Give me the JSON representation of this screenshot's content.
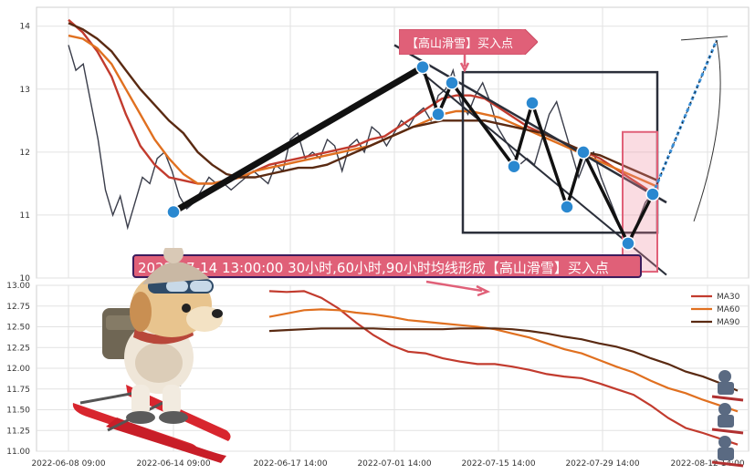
{
  "banner_text": "2022-07-14 13:00:00 30小时,60小时,90小时均线形成【高山滑雪】买入点",
  "tag_text": "【高山滑雪】买入点",
  "colors": {
    "price": "#3a3d4a",
    "ma30": "#c23b2e",
    "ma60": "#e07020",
    "ma90": "#5a2a12",
    "marker": "#2a88d0",
    "box": "#2b2f3a",
    "pink": "#e06078"
  },
  "chart_data": [
    {
      "type": "line",
      "panel": "price",
      "ylim": [
        10,
        14.3
      ],
      "yticks": [
        "10",
        "11",
        "12",
        "13",
        "14"
      ],
      "grid": true,
      "x_start": "2022-06-08 09:00",
      "x_end": "2022-08-16 09:00",
      "series": [
        {
          "values": [
            13.7,
            13.3,
            13.4,
            12.8,
            12.2,
            11.4,
            11.0,
            11.3,
            10.8,
            11.2,
            11.6,
            11.5,
            11.9,
            12.0,
            11.7,
            11.3,
            11.1,
            11.2,
            11.4,
            11.6,
            11.5,
            11.5,
            11.4,
            11.5,
            11.6,
            11.7,
            11.6,
            11.5,
            11.8,
            11.7,
            12.2,
            12.3,
            11.9,
            12.0,
            11.9,
            12.2,
            12.1,
            11.7,
            12.1,
            12.2,
            12.0,
            12.4,
            12.3,
            12.1,
            12.3,
            12.5,
            12.4,
            12.6,
            12.7,
            12.5,
            12.9,
            13.0,
            13.3,
            12.8,
            12.6,
            12.9,
            13.1,
            12.8,
            12.4,
            12.2,
            12.0,
            11.8,
            11.9,
            11.8,
            12.2,
            12.6,
            12.8,
            12.4,
            12.0,
            11.6,
            11.9,
            12.0,
            11.6,
            11.3,
            11.0,
            10.7,
            10.55,
            10.9,
            11.2,
            11.35
          ]
        },
        {
          "name": "MA30",
          "values": [
            14.1,
            13.9,
            13.6,
            13.2,
            12.6,
            12.1,
            11.8,
            11.6,
            11.55,
            11.5,
            11.5,
            11.55,
            11.6,
            11.7,
            11.8,
            11.85,
            11.9,
            11.95,
            12.0,
            12.05,
            12.1,
            12.2,
            12.25,
            12.4,
            12.55,
            12.7,
            12.85,
            12.9,
            12.9,
            12.85,
            12.7,
            12.55,
            12.4,
            12.3,
            12.2,
            12.1,
            12.0,
            11.9,
            11.75,
            11.6,
            11.45,
            11.3
          ]
        },
        {
          "name": "MA60",
          "values": [
            13.85,
            13.8,
            13.65,
            13.4,
            13.0,
            12.6,
            12.2,
            11.9,
            11.65,
            11.5,
            11.5,
            11.55,
            11.6,
            11.7,
            11.75,
            11.8,
            11.85,
            11.9,
            11.95,
            12.0,
            12.05,
            12.1,
            12.2,
            12.3,
            12.4,
            12.5,
            12.6,
            12.65,
            12.65,
            12.6,
            12.55,
            12.45,
            12.35,
            12.25,
            12.15,
            12.05,
            11.95,
            11.85,
            11.75,
            11.65,
            11.55,
            11.45
          ]
        },
        {
          "name": "MA90",
          "values": [
            14.05,
            13.95,
            13.8,
            13.6,
            13.3,
            13.0,
            12.75,
            12.5,
            12.3,
            12.0,
            11.8,
            11.65,
            11.6,
            11.6,
            11.65,
            11.7,
            11.75,
            11.75,
            11.8,
            11.9,
            12.0,
            12.1,
            12.2,
            12.3,
            12.4,
            12.45,
            12.5,
            12.5,
            12.5,
            12.5,
            12.45,
            12.4,
            12.35,
            12.3,
            12.2,
            12.1,
            12.0,
            11.95,
            11.85,
            11.75,
            11.65,
            11.55
          ]
        }
      ]
    },
    {
      "type": "line",
      "panel": "ma",
      "ylim": [
        11.0,
        13.0
      ],
      "yticks": [
        "11.00",
        "11.25",
        "11.50",
        "11.75",
        "12.00",
        "12.25",
        "12.50",
        "12.75",
        "13.00"
      ],
      "grid": true,
      "legend": "top-right",
      "xticks": [
        "2022-06-08 09:00",
        "2022-06-14 09:00",
        "2022-06-17 14:00",
        "2022-07-01 14:00",
        "2022-07-15 14:00",
        "2022-07-29 14:00",
        "2022-08-12 14:00"
      ],
      "series": [
        {
          "name": "MA30",
          "values": [
            12.93,
            12.92,
            12.93,
            12.85,
            12.72,
            12.55,
            12.4,
            12.28,
            12.2,
            12.18,
            12.12,
            12.08,
            12.05,
            12.05,
            12.02,
            11.98,
            11.93,
            11.9,
            11.88,
            11.82,
            11.75,
            11.68,
            11.55,
            11.4,
            11.28,
            11.22,
            11.15,
            11.08
          ]
        },
        {
          "name": "MA60",
          "values": [
            12.62,
            12.66,
            12.7,
            12.71,
            12.7,
            12.67,
            12.65,
            12.62,
            12.58,
            12.56,
            12.54,
            12.52,
            12.5,
            12.47,
            12.42,
            12.37,
            12.3,
            12.23,
            12.18,
            12.1,
            12.02,
            11.95,
            11.85,
            11.76,
            11.7,
            11.62,
            11.55,
            11.48
          ]
        },
        {
          "name": "MA90",
          "values": [
            12.45,
            12.46,
            12.47,
            12.48,
            12.48,
            12.48,
            12.48,
            12.47,
            12.47,
            12.47,
            12.47,
            12.48,
            12.48,
            12.48,
            12.47,
            12.45,
            12.42,
            12.38,
            12.35,
            12.3,
            12.26,
            12.2,
            12.12,
            12.05,
            11.96,
            11.9,
            11.82,
            11.73
          ]
        }
      ]
    }
  ]
}
